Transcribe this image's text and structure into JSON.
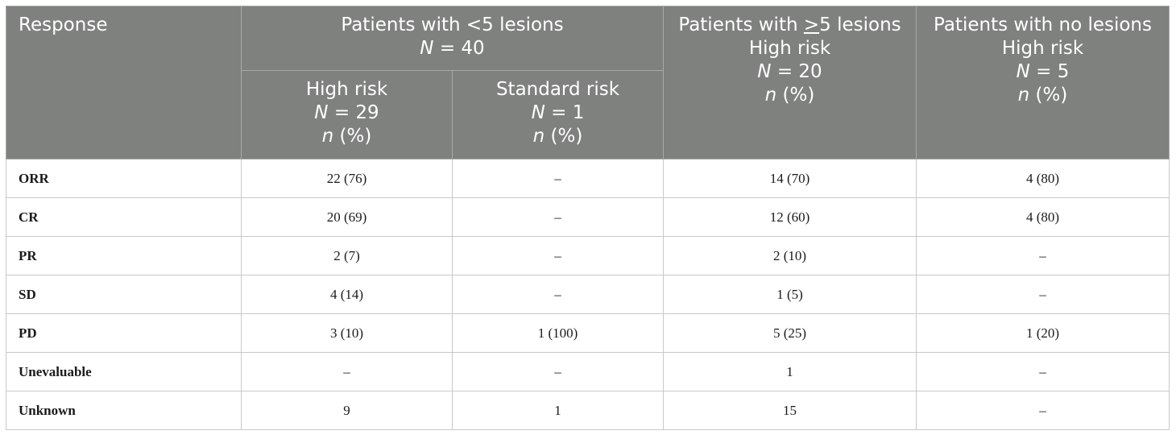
{
  "header": {
    "response": "Response",
    "group_lt5": {
      "title": "Patients with <5 lesions",
      "n_italic": "N",
      "n_rest": " = 40"
    },
    "lt5_high": {
      "title": "High risk",
      "n_italic": "N",
      "n_rest": " = 29",
      "pct_italic": "n",
      "pct_rest": " (%)"
    },
    "lt5_std": {
      "title": "Standard risk",
      "n_italic": "N",
      "n_rest": " = 1",
      "pct_italic": "n",
      "pct_rest": " (%)"
    },
    "ge5": {
      "title_prefix": "Patients with ",
      "title_ge": ">",
      "title_suffix": "5 lesions",
      "subtitle": "High risk",
      "n_italic": "N",
      "n_rest": " = 20",
      "pct_italic": "n",
      "pct_rest": " (%)"
    },
    "none": {
      "title": "Patients with no lesions",
      "subtitle": "High risk",
      "n_italic": "N",
      "n_rest": " = 5",
      "pct_italic": "n",
      "pct_rest": " (%)"
    }
  },
  "rows": [
    {
      "label": "ORR",
      "c1": "22 (76)",
      "c2": "–",
      "c3": "14 (70)",
      "c4": "4 (80)"
    },
    {
      "label": "CR",
      "c1": "20 (69)",
      "c2": "–",
      "c3": "12 (60)",
      "c4": "4 (80)"
    },
    {
      "label": "PR",
      "c1": "2 (7)",
      "c2": "–",
      "c3": "2 (10)",
      "c4": "–"
    },
    {
      "label": "SD",
      "c1": "4 (14)",
      "c2": "–",
      "c3": "1 (5)",
      "c4": "–"
    },
    {
      "label": "PD",
      "c1": "3 (10)",
      "c2": "1 (100)",
      "c3": "5 (25)",
      "c4": "1 (20)"
    },
    {
      "label": "Unevaluable",
      "c1": "–",
      "c2": "–",
      "c3": "1",
      "c4": "–"
    },
    {
      "label": "Unknown",
      "c1": "9",
      "c2": "1",
      "c3": "15",
      "c4": "–"
    }
  ]
}
